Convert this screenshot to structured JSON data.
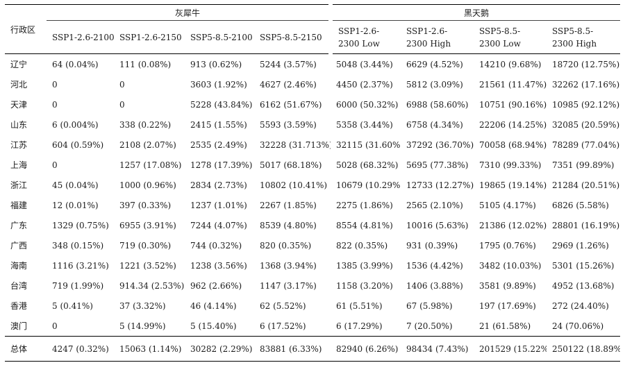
{
  "header": {
    "region": "行政区",
    "group_a": "灰犀牛",
    "group_b": "黑天鹅",
    "cols": [
      "SSP1-2.6-2100",
      "SSP1-2.6-2150",
      "SSP5-8.5-2100",
      "SSP5-8.5-2150",
      "SSP1-2.6-\n2300 Low",
      "SSP1-2.6-\n2300 High",
      "SSP5-8.5-\n2300 Low",
      "SSP5-8.5-\n2300 High"
    ]
  },
  "rows": [
    {
      "name": "辽宁",
      "v": [
        "64 (0.04%)",
        "111 (0.08%)",
        "913 (0.62%)",
        "5244 (3.57%)",
        "5048 (3.44%)",
        "6629 (4.52%)",
        "14210 (9.68%)",
        "18720 (12.75%)"
      ]
    },
    {
      "name": "河北",
      "v": [
        "0",
        "0",
        "3603 (1.92%)",
        "4627 (2.46%)",
        "4450 (2.37%)",
        "5812 (3.09%)",
        "21561 (11.47%)",
        "32262 (17.16%)"
      ]
    },
    {
      "name": "天津",
      "v": [
        "0",
        "0",
        "5228 (43.84%)",
        "6162 (51.67%)",
        "6000 (50.32%)",
        "6988 (58.60%)",
        "10751 (90.16%)",
        "10985 (92.12%)"
      ]
    },
    {
      "name": "山东",
      "v": [
        "6 (0.004%)",
        "338 (0.22%)",
        "2415 (1.55%)",
        "5593 (3.59%)",
        "5358 (3.44%)",
        "6758 (4.34%)",
        "22206 (14.25%)",
        "32085 (20.59%)"
      ]
    },
    {
      "name": "江苏",
      "v": [
        "604 (0.59%)",
        "2108 (2.07%)",
        "2535 (2.49%)",
        "32228 (31.713%)",
        "32115 (31.60%)",
        "37292 (36.70%)",
        "70058 (68.94%)",
        "78289 (77.04%)"
      ]
    },
    {
      "name": "上海",
      "v": [
        "0",
        "1257 (17.08%)",
        "1278 (17.39%)",
        "5017 (68.18%)",
        "5028 (68.32%)",
        "5695 (77.38%)",
        "7310 (99.33%)",
        "7351 (99.89%)"
      ]
    },
    {
      "name": "浙江",
      "v": [
        "45 (0.04%)",
        "1000 (0.96%)",
        "2834 (2.73%)",
        "10802 (10.41%)",
        "10679 (10.29%)",
        "12733 (12.27%)",
        "19865 (19.14%)",
        "21284 (20.51%)"
      ]
    },
    {
      "name": "福建",
      "v": [
        "12 (0.01%)",
        "397 (0.33%)",
        "1237 (1.01%)",
        "2267 (1.85%)",
        "2275 (1.86%)",
        "2565 (2.10%)",
        "5105 (4.17%)",
        "6826 (5.58%)"
      ]
    },
    {
      "name": "广东",
      "v": [
        "1329 (0.75%)",
        "6955 (3.91%)",
        "7244 (4.07%)",
        "8539 (4.80%)",
        "8554 (4.81%)",
        "10016 (5.63%)",
        "21386 (12.02%)",
        "28801 (16.19%)"
      ]
    },
    {
      "name": "广西",
      "v": [
        "348 (0.15%)",
        "719 (0.30%)",
        "744 (0.32%)",
        "820 (0.35%)",
        "822 (0.35%)",
        "931 (0.39%)",
        "1795 (0.76%)",
        "2969 (1.26%)"
      ]
    },
    {
      "name": "海南",
      "v": [
        "1116 (3.21%)",
        "1221 (3.52%)",
        "1238 (3.56%)",
        "1368 (3.94%)",
        "1385 (3.99%)",
        "1536 (4.42%)",
        "3482 (10.03%)",
        "5301 (15.26%)"
      ]
    },
    {
      "name": "台湾",
      "v": [
        "719 (1.99%)",
        "914.34 (2.53%)",
        "962 (2.66%)",
        "1147 (3.17%)",
        "1158 (3.20%)",
        "1406 (3.88%)",
        "3581 (9.89%)",
        "4952 (13.68%)"
      ]
    },
    {
      "name": "香港",
      "v": [
        "5 (0.41%)",
        "37 (3.32%)",
        "46 (4.14%)",
        "62 (5.52%)",
        "61 (5.51%)",
        "67 (5.98%)",
        "197 (17.69%)",
        "272 (24.40%)"
      ]
    },
    {
      "name": "澳门",
      "v": [
        "0",
        "5 (14.99%)",
        "5 (15.40%)",
        "6 (17.52%)",
        "6 (17.29%)",
        "7 (20.50%)",
        "21 (61.58%)",
        "24 (70.06%)"
      ]
    }
  ],
  "total": {
    "name": "总体",
    "v": [
      "4247 (0.32%)",
      "15063 (1.14%)",
      "30282 (2.29%)",
      "83881 (6.33%)",
      "82940 (6.26%)",
      "98434 (7.43%)",
      "201529 (15.22%)",
      "250122 (18.89%)"
    ]
  }
}
